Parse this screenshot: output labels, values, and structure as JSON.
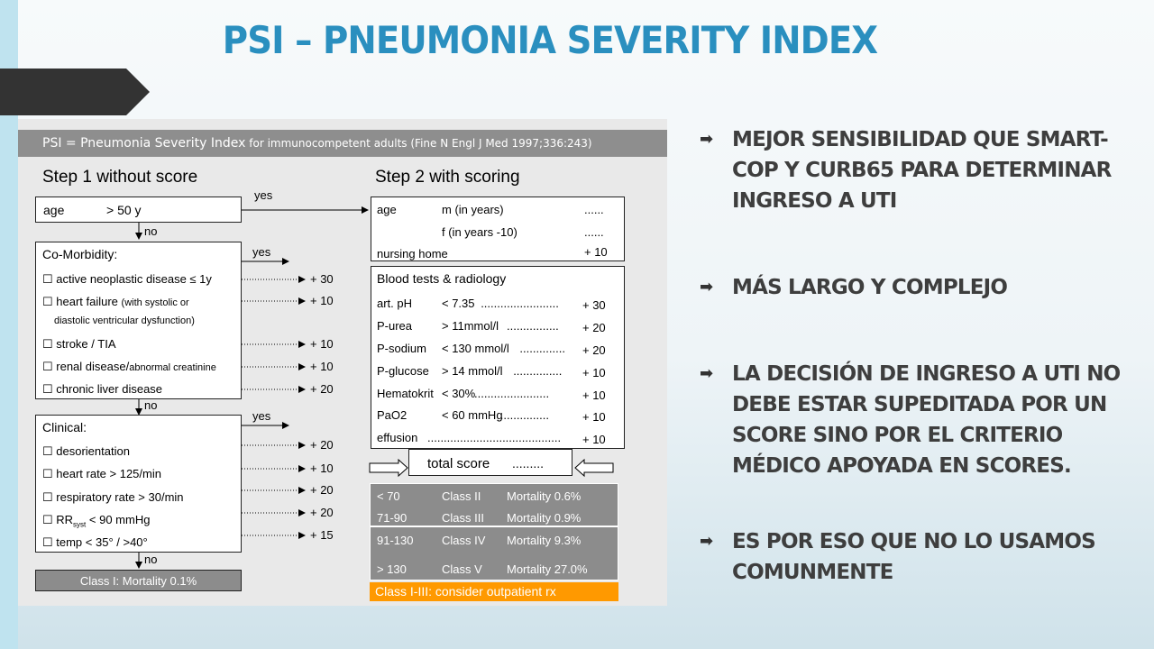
{
  "title": "PSI – PNEUMONIA SEVERITY INDEX",
  "figure": {
    "header_name": "PSI = Pneumonia Severity Index",
    "header_rest": " for immunocompetent adults    (Fine N Engl J Med 1997;336:243)",
    "step1": "Step 1 without score",
    "step2": "Step 2 with scoring",
    "yes": "yes",
    "no": "no",
    "age_box": {
      "label": "age",
      "value": "> 50 y"
    },
    "comorbidity": {
      "heading": "Co-Morbidity:",
      "items": [
        {
          "text": "☐ active neoplastic disease ≤ 1y",
          "points": "+ 30"
        },
        {
          "text": "☐ heart failure ",
          "small": "(with systolic or",
          "points": "+ 10"
        },
        {
          "text": "",
          "small": "diastolic ventricular dysfunction)",
          "points": ""
        },
        {
          "text": "☐ stroke / TIA",
          "points": "+ 10"
        },
        {
          "text": "☐ renal disease/",
          "small": "abnormal creatinine",
          "points": "+ 10"
        },
        {
          "text": "☐ chronic liver disease",
          "points": "+ 20"
        }
      ]
    },
    "clinical": {
      "heading": "Clinical:",
      "items": [
        {
          "text": "☐ desorientation",
          "points": "+ 20"
        },
        {
          "text": "☐ heart rate > 125/min",
          "points": "+ 10"
        },
        {
          "text": "☐ respiratory rate > 30/min",
          "points": "+ 20"
        },
        {
          "text": "☐ RR",
          "sub": "syst",
          "after": " < 90 mmHg",
          "points": "+ 20"
        },
        {
          "text": "☐ temp < 35° / >40°",
          "points": "+ 15"
        }
      ]
    },
    "class_one": "Class I: Mortality 0.1%",
    "step2_age": [
      {
        "label": "age",
        "desc": "m (in years)",
        "pts": "......"
      },
      {
        "label": "",
        "desc": "f (in years -10)",
        "pts": "......"
      },
      {
        "label": "nursing home",
        "desc": "",
        "pts": "+ 10"
      }
    ],
    "blood": {
      "heading": "Blood tests & radiology",
      "rows": [
        {
          "name": "art. pH",
          "crit": "< 7.35",
          "dots": "........................",
          "pts": "+ 30"
        },
        {
          "name": "P-urea",
          "crit": "> 11mmol/l",
          "dots": "................",
          "pts": "+ 20"
        },
        {
          "name": "P-sodium",
          "crit": "< 130 mmol/l",
          "dots": "..............",
          "pts": "+ 20"
        },
        {
          "name": "P-glucose",
          "crit": "> 14 mmol/l",
          "dots": "...............",
          "pts": "+ 10"
        },
        {
          "name": "Hematokrit",
          "crit": "< 30%",
          "dots": ".......................",
          "pts": "+ 10"
        },
        {
          "name": "PaO2",
          "crit": "< 60 mmHg",
          "dots": "...............",
          "pts": "+ 10"
        },
        {
          "name": "effusion",
          "crit": "",
          "dots": ".........................................",
          "pts": "+ 10"
        }
      ]
    },
    "total_score": "total score",
    "total_dots": ".........",
    "classes_top": [
      {
        "range": "< 70",
        "cls": "Class II",
        "mort": "Mortality 0.6%"
      },
      {
        "range": "71-90",
        "cls": "Class III",
        "mort": "Mortality 0.9%"
      }
    ],
    "classes_bottom": [
      {
        "range": "91-130",
        "cls": "Class IV",
        "mort": "Mortality 9.3%"
      },
      {
        "range": "> 130",
        "cls": "Class V",
        "mort": "Mortality 27.0%"
      }
    ],
    "outpatient": "Class I-III: consider outpatient rx"
  },
  "bullets": [
    "MEJOR SENSIBILIDAD QUE SMART-COP Y CURB65 PARA DETERMINAR INGRESO A UTI",
    "MÁS LARGO Y COMPLEJO",
    "LA DECISIÓN DE INGRESO A UTI NO DEBE ESTAR SUPEDITADA POR UN SCORE SINO POR EL CRITERIO MÉDICO APOYADA EN SCORES.",
    "ES POR ESO QUE NO LO USAMOS COMUNMENTE"
  ],
  "colors": {
    "title": "#2a8fbf",
    "accent_strip": "#bfe3ef",
    "orange": "#ff9900"
  }
}
